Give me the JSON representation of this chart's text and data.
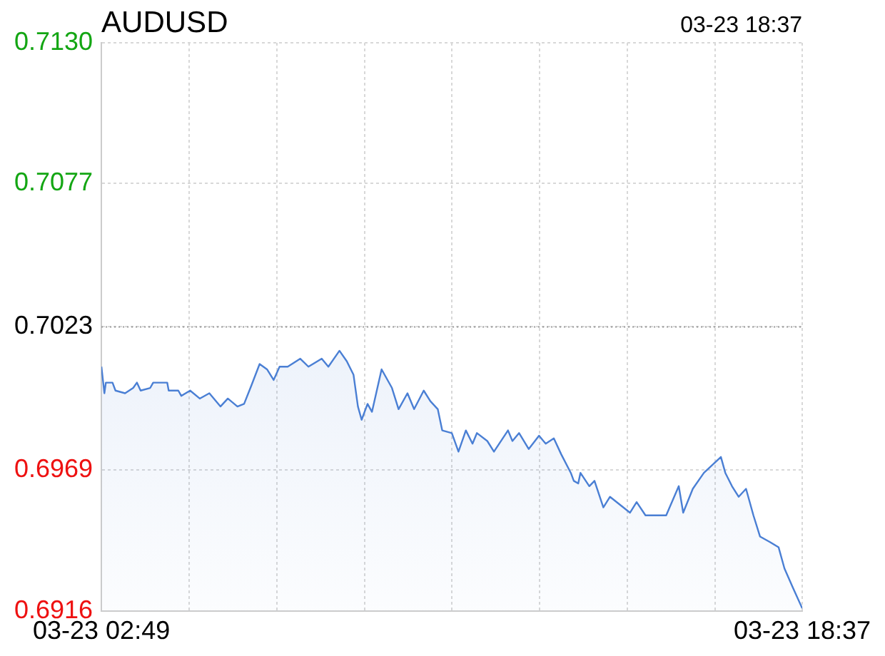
{
  "chart_data": {
    "type": "area",
    "title": "AUDUSD",
    "subtitle": "03-23 18:37",
    "x": [
      "--03-23T02:49",
      "--03-23T02:53",
      "--03-23T02:55",
      "--03-23T03:04",
      "--03-23T03:08",
      "--03-23T03:21",
      "--03-23T03:32",
      "--03-23T03:37",
      "--03-23T03:42",
      "--03-23T03:55",
      "--03-23T03:59",
      "--03-23T04:18",
      "--03-23T04:20",
      "--03-23T04:33",
      "--03-23T04:37",
      "--03-23T04:49",
      "--03-23T05:02",
      "--03-23T05:15",
      "--03-23T05:30",
      "--03-23T05:40",
      "--03-23T05:53",
      "--03-23T06:02",
      "--03-23T06:12",
      "--03-23T06:23",
      "--03-23T06:33",
      "--03-23T06:42",
      "--03-23T06:50",
      "--03-23T07:01",
      "--03-23T07:18",
      "--03-23T07:29",
      "--03-23T07:47",
      "--03-23T07:56",
      "--03-23T08:11",
      "--03-23T08:21",
      "--03-23T08:30",
      "--03-23T08:36",
      "--03-23T08:41",
      "--03-23T08:49",
      "--03-23T08:55",
      "--03-23T09:08",
      "--03-23T09:22",
      "--03-23T09:31",
      "--03-23T09:43",
      "--03-23T09:52",
      "--03-23T10:05",
      "--03-23T10:14",
      "--03-23T10:24",
      "--03-23T10:30",
      "--03-23T10:43",
      "--03-23T10:52",
      "--03-23T11:02",
      "--03-23T11:11",
      "--03-23T11:17",
      "--03-23T11:31",
      "--03-23T11:40",
      "--03-23T11:59",
      "--03-23T12:05",
      "--03-23T12:14",
      "--03-23T12:27",
      "--03-23T12:41",
      "--03-23T12:50",
      "--03-23T13:01",
      "--03-23T13:11",
      "--03-23T13:24",
      "--03-23T13:28",
      "--03-23T13:34",
      "--03-23T13:37",
      "--03-23T13:49",
      "--03-23T13:56",
      "--03-23T14:08",
      "--03-23T14:17",
      "--03-23T14:44",
      "--03-23T14:53",
      "--03-23T15:05",
      "--03-23T15:22",
      "--03-23T15:33",
      "--03-23T15:50",
      "--03-23T15:56",
      "--03-23T16:09",
      "--03-23T16:24",
      "--03-23T16:47",
      "--03-23T16:53",
      "--03-23T17:02",
      "--03-23T17:11",
      "--03-23T17:21",
      "--03-23T17:31",
      "--03-23T17:40",
      "--03-23T17:53",
      "--03-23T18:05",
      "--03-23T18:13",
      "--03-23T18:24",
      "--03-23T18:37"
    ],
    "series": [
      {
        "color": "#4a7fd4",
        "values": [
          0.7008,
          0.6998,
          0.7002,
          0.7002,
          0.6999,
          0.6998,
          0.7,
          0.7002,
          0.6999,
          0.7,
          0.7002,
          0.7002,
          0.6999,
          0.6999,
          0.6997,
          0.6999,
          0.6996,
          0.6998,
          0.6993,
          0.6996,
          0.6993,
          0.6994,
          0.7001,
          0.7009,
          0.7007,
          0.7003,
          0.7008,
          0.7008,
          0.7011,
          0.7008,
          0.7011,
          0.7008,
          0.7014,
          0.701,
          0.7005,
          0.6993,
          0.6988,
          0.6994,
          0.6991,
          0.7007,
          0.7,
          0.6992,
          0.6998,
          0.6992,
          0.6999,
          0.6995,
          0.6992,
          0.6984,
          0.6983,
          0.6976,
          0.6984,
          0.6979,
          0.6983,
          0.698,
          0.6976,
          0.6984,
          0.698,
          0.6983,
          0.6977,
          0.6982,
          0.6979,
          0.6981,
          0.6975,
          0.6968,
          0.6965,
          0.6964,
          0.6968,
          0.6963,
          0.6965,
          0.6955,
          0.6959,
          0.6953,
          0.6957,
          0.6952,
          0.6952,
          0.6952,
          0.6963,
          0.6953,
          0.6962,
          0.6968,
          0.6974,
          0.6968,
          0.6963,
          0.6959,
          0.6962,
          0.6952,
          0.6944,
          0.6942,
          0.694,
          0.6932,
          0.6925,
          0.6917
        ]
      }
    ],
    "xlim": [
      "--03-23T02:49",
      "--03-23T18:37"
    ],
    "xticks": [
      {
        "value": "--03-23T02:49",
        "label": "03-23 02:49"
      },
      {
        "value": "--03-23T04:48",
        "label": null
      },
      {
        "value": "--03-23T06:46",
        "label": null
      },
      {
        "value": "--03-23T08:45",
        "label": null
      },
      {
        "value": "--03-23T10:43",
        "label": null
      },
      {
        "value": "--03-23T12:42",
        "label": null
      },
      {
        "value": "--03-23T14:40",
        "label": null
      },
      {
        "value": "--03-23T16:39",
        "label": null
      },
      {
        "value": "--03-23T18:37",
        "label": "03-23 18:37"
      }
    ],
    "ylim": [
      0.6916,
      0.713
    ],
    "yticks": [
      {
        "value": 0.6916,
        "label": "0.6916"
      },
      {
        "value": 0.6969,
        "label": "0.6969"
      },
      {
        "value": 0.7023,
        "label": "0.7023"
      },
      {
        "value": 0.7077,
        "label": "0.7077"
      },
      {
        "value": 0.713,
        "label": "0.7130"
      }
    ],
    "ref_lines": [
      {
        "axis": "y",
        "value": 0.7023,
        "color": "#999999",
        "line_style": "dotted"
      }
    ],
    "grid": true,
    "legend": false,
    "marker": "none",
    "line_style": "solid"
  }
}
